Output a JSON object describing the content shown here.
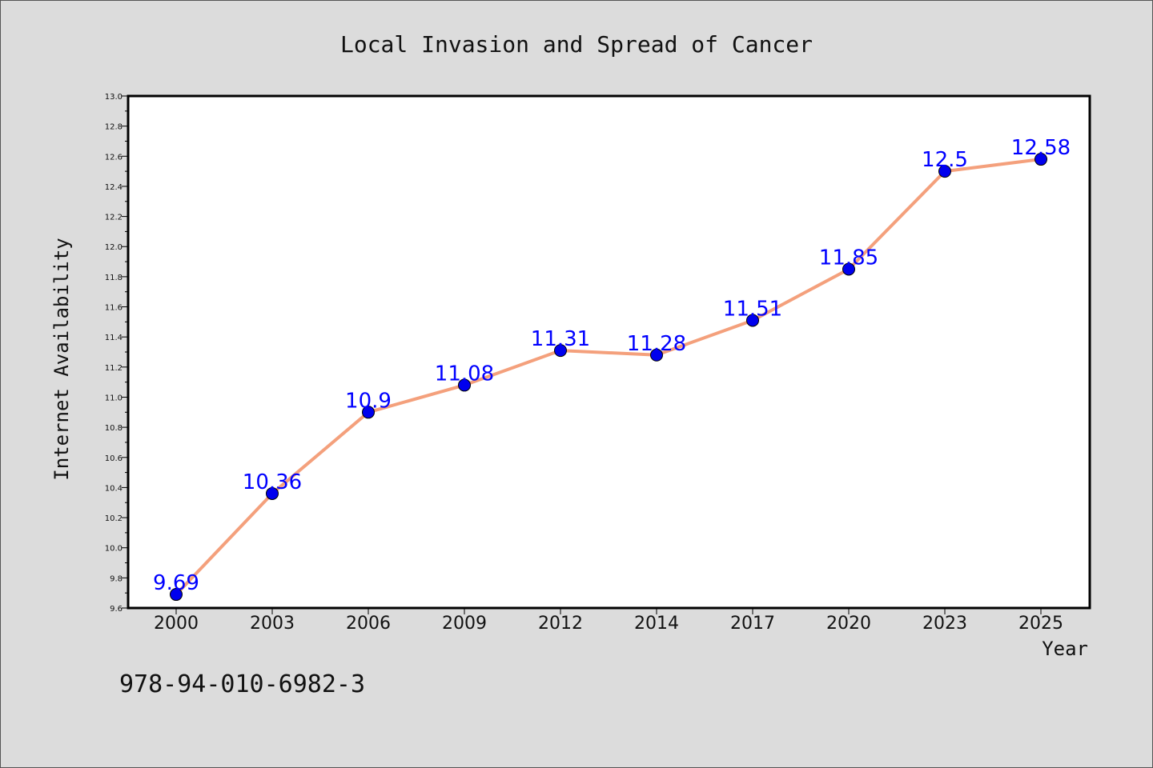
{
  "chart_data": {
    "type": "line",
    "title": "Local Invasion and Spread of Cancer",
    "xlabel": "Year",
    "ylabel": "Internet Availability",
    "categories": [
      "2000",
      "2003",
      "2006",
      "2009",
      "2012",
      "2014",
      "2017",
      "2020",
      "2023",
      "2025"
    ],
    "series": [
      {
        "values": [
          9.69,
          10.36,
          10.9,
          11.08,
          11.31,
          11.28,
          11.51,
          11.85,
          12.5,
          12.58
        ],
        "labels": [
          "9.69",
          "10.36",
          "10.9",
          "11.08",
          "11.31",
          "11.28",
          "11.51",
          "11.85",
          "12.5",
          "12.58"
        ],
        "line_color": "#f4a07c",
        "marker_color": "#0000ee"
      }
    ],
    "ylim": [
      9.6,
      13.0
    ],
    "yticks": [
      "9.6",
      "9.8",
      "10.0",
      "10.2",
      "10.4",
      "10.6",
      "10.8",
      "11.0",
      "11.2",
      "11.4",
      "11.6",
      "11.8",
      "12.0",
      "12.2",
      "12.4",
      "12.6",
      "12.8",
      "13.0"
    ],
    "grid": false,
    "legend": false
  },
  "footer_text": "978-94-010-6982-3"
}
